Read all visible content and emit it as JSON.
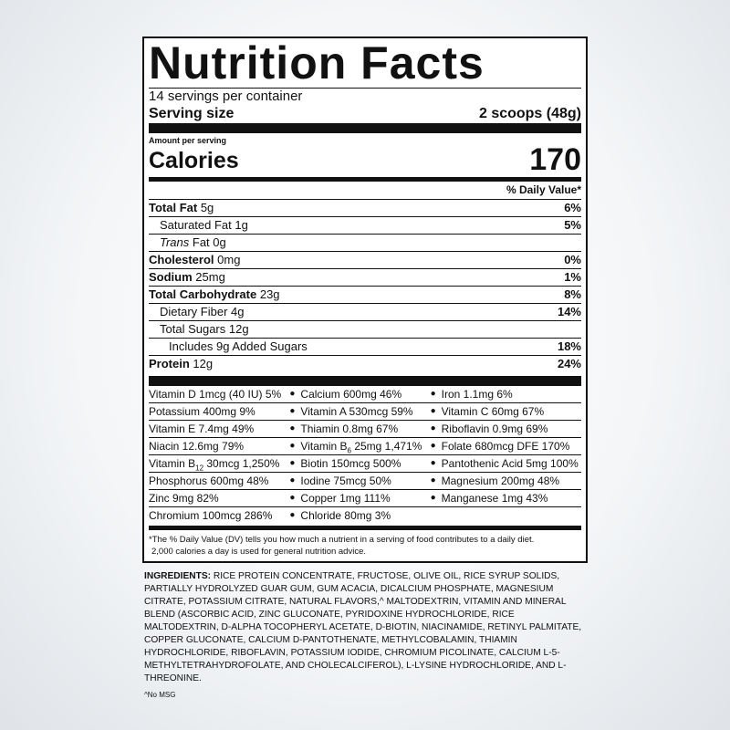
{
  "title": "Nutrition Facts",
  "servings_per_container": "14 servings per container",
  "serving_size": {
    "label": "Serving size",
    "value": "2 scoops (48g)"
  },
  "amount_per_serving": "Amount per serving",
  "calories": {
    "label": "Calories",
    "value": "170"
  },
  "daily_value_header": "% Daily Value*",
  "nutrients": [
    {
      "name": "Total Fat",
      "amount": "5g",
      "dv": "6%",
      "bold": true,
      "indent": 0
    },
    {
      "name": "Saturated Fat",
      "amount": "1g",
      "dv": "5%",
      "bold": false,
      "indent": 1
    },
    {
      "name": "Trans",
      "amount": "Fat 0g",
      "dv": "",
      "bold": false,
      "indent": 1
    },
    {
      "name": "Cholesterol",
      "amount": "0mg",
      "dv": "0%",
      "bold": true,
      "indent": 0
    },
    {
      "name": "Sodium",
      "amount": "25mg",
      "dv": "1%",
      "bold": true,
      "indent": 0
    },
    {
      "name": "Total Carbohydrate",
      "amount": "23g",
      "dv": "8%",
      "bold": true,
      "indent": 0
    },
    {
      "name": "Dietary Fiber",
      "amount": "4g",
      "dv": "14%",
      "bold": false,
      "indent": 1
    },
    {
      "name": "Total Sugars",
      "amount": "12g",
      "dv": "",
      "bold": false,
      "indent": 1
    },
    {
      "name": "Includes 9g Added Sugars",
      "amount": "",
      "dv": "18%",
      "bold": false,
      "indent": 2
    },
    {
      "name": "Protein",
      "amount": "12g",
      "dv": "24%",
      "bold": true,
      "indent": 0
    }
  ],
  "vitamins": [
    [
      {
        "text": "Vitamin D 1mcg (40 IU) 5%"
      },
      {
        "text": "Calcium 600mg 46%"
      },
      {
        "text": "Iron 1.1mg 6%"
      }
    ],
    [
      {
        "text": "Potassium 400mg 9%"
      },
      {
        "text": "Vitamin A 530mcg 59%"
      },
      {
        "text": "Vitamin C 60mg 67%"
      }
    ],
    [
      {
        "text": "Vitamin E 7.4mg 49%"
      },
      {
        "text": "Thiamin 0.8mg 67%"
      },
      {
        "text": "Riboflavin 0.9mg 69%"
      }
    ],
    [
      {
        "text": "Niacin 12.6mg 79%"
      },
      {
        "text": "Vitamin B",
        "sub": "6",
        "rest": " 25mg 1,471%"
      },
      {
        "text": "Folate 680mcg DFE 170%"
      }
    ],
    [
      {
        "text": "Vitamin B",
        "sub": "12",
        "rest": " 30mcg 1,250%"
      },
      {
        "text": "Biotin 150mcg 500%"
      },
      {
        "text": "Pantothenic Acid 5mg 100%"
      }
    ],
    [
      {
        "text": "Phosphorus 600mg 48%"
      },
      {
        "text": "Iodine 75mcg 50%"
      },
      {
        "text": "Magnesium 200mg 48%"
      }
    ],
    [
      {
        "text": "Zinc 9mg 82%"
      },
      {
        "text": "Copper 1mg 111%"
      },
      {
        "text": "Manganese 1mg 43%"
      }
    ],
    [
      {
        "text": "Chromium 100mcg 286%"
      },
      {
        "text": "Chloride 80mg 3%"
      }
    ]
  ],
  "footnote": [
    "*The % Daily Value (DV) tells you how much a nutrient in a serving of food contributes to a daily diet.",
    "2,000 calories a day is used for general nutrition advice."
  ],
  "ingredients": {
    "label": "INGREDIENTS:",
    "text": "RICE PROTEIN CONCENTRATE, FRUCTOSE, OLIVE OIL, RICE SYRUP SOLIDS, PARTIALLY HYDROLYZED GUAR GUM, GUM ACACIA, DICALCIUM PHOSPHATE, MAGNESIUM CITRATE, POTASSIUM CITRATE, NATURAL FLAVORS,^ MALTODEXTRIN, VITAMIN AND MINERAL BLEND (ASCORBIC ACID, ZINC GLUCONATE, PYRIDOXINE HYDROCHLORIDE, RICE MALTODEXTRIN, D-ALPHA TOCOPHERYL ACETATE, D-BIOTIN, NIACINAMIDE, RETINYL PALMITATE, COPPER GLUCONATE, CALCIUM D-PANTOTHENATE, METHYLCOBALAMIN, THIAMIN HYDROCHLORIDE, RIBOFLAVIN, POTASSIUM IODIDE, CHROMIUM PICOLINATE, CALCIUM L-5-METHYLTETRAHYDROFOLATE, AND CHOLECALCIFEROL), L-LYSINE HYDROCHLORIDE, AND L-THREONINE."
  },
  "note": "^No MSG"
}
